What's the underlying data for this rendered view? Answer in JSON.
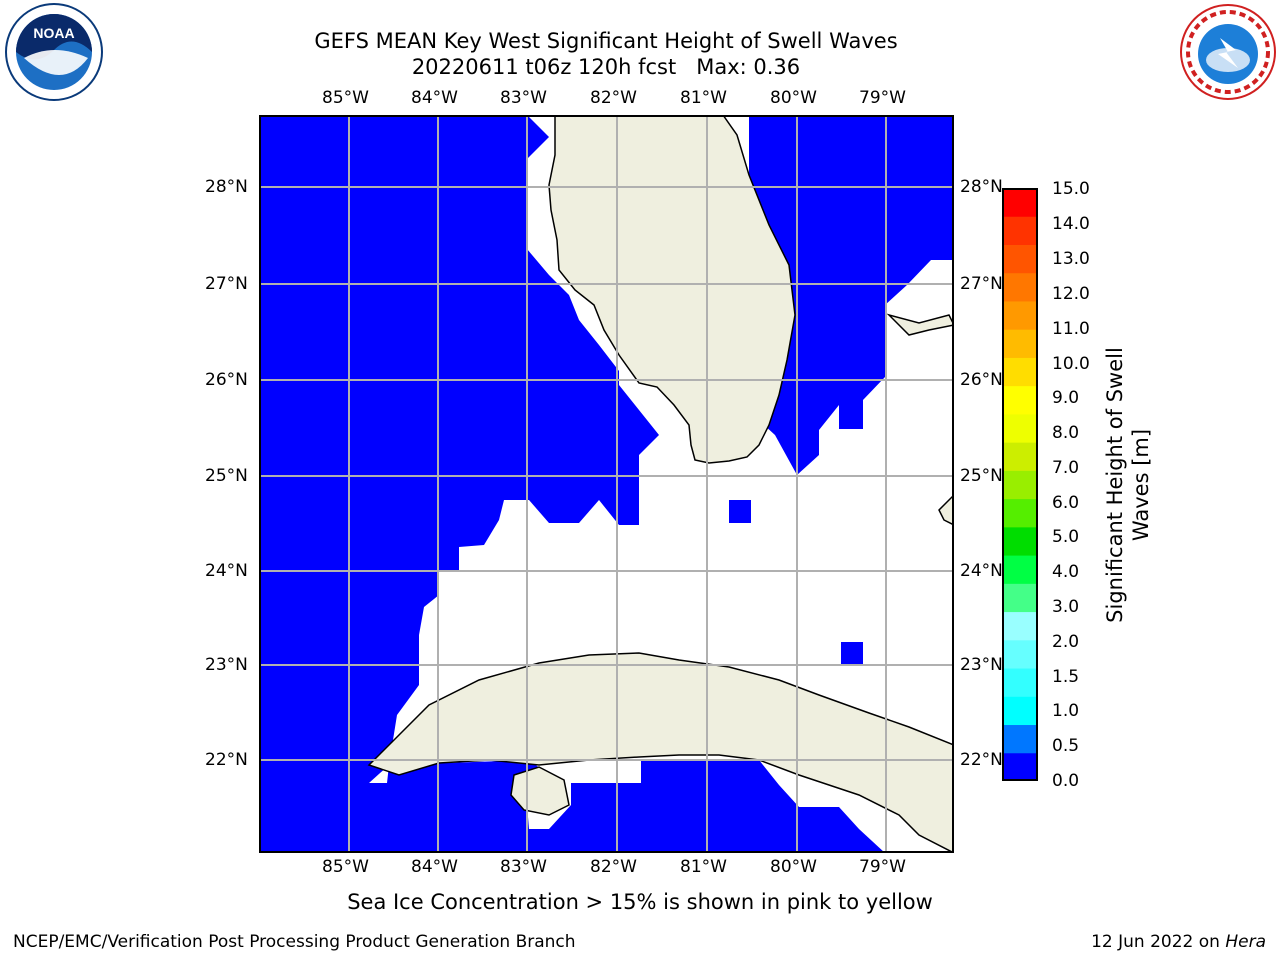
{
  "title": {
    "line1": "GEFS MEAN Key West Significant Height of Swell Waves",
    "line2": "20220611 t06z 120h fcst   Max: 0.36"
  },
  "map": {
    "lon_labels": [
      "85°W",
      "84°W",
      "83°W",
      "82°W",
      "81°W",
      "80°W",
      "79°W"
    ],
    "lat_labels": [
      "28°N",
      "27°N",
      "26°N",
      "25°N",
      "24°N",
      "23°N",
      "22°N"
    ],
    "ocean_color": "#0000ff",
    "land_color": "#efefdf",
    "gridline_color": "#b0b0b0"
  },
  "colorbar": {
    "title": "Significant Height of Swell Waves [m]",
    "tick_labels": [
      "15.0",
      "14.0",
      "13.0",
      "12.0",
      "11.0",
      "10.0",
      "9.0",
      "8.0",
      "7.0",
      "6.0",
      "5.0",
      "4.0",
      "3.0",
      "2.0",
      "1.5",
      "1.0",
      "0.5",
      "0.0"
    ],
    "colors_bottom_to_top": [
      "#0000ff",
      "#0077ff",
      "#00ffff",
      "#33ffff",
      "#66ffff",
      "#99ffff",
      "#44ff88",
      "#00ff44",
      "#00dd00",
      "#55ee00",
      "#99ee00",
      "#ccee00",
      "#eeff00",
      "#ffff00",
      "#ffdd00",
      "#ffbb00",
      "#ff9900",
      "#ff7700",
      "#ff5500",
      "#ff3300",
      "#ff0000"
    ]
  },
  "note": "Sea Ice Concentration > 15% is shown in pink to yellow",
  "footer": {
    "left": "NCEP/EMC/Verification Post Processing Product Generation Branch",
    "right_date": "12 Jun 2022 on ",
    "right_host": "Hera"
  },
  "logos": {
    "noaa_text": "NOAA",
    "nws_text": "NATIONAL WEATHER SERVICE"
  }
}
